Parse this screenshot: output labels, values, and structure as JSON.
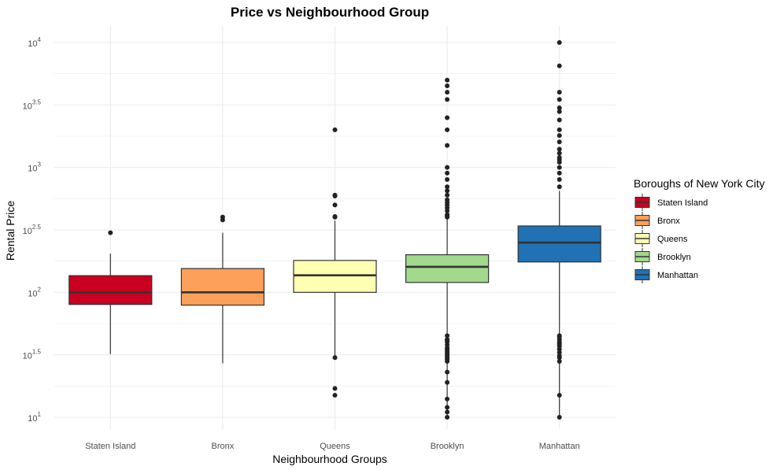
{
  "chart_data": {
    "type": "boxplot",
    "title": "Price vs Neighbourhood Group",
    "xlabel": "Neighbourhood Groups",
    "ylabel": "Rental Price",
    "y_scale": "log10",
    "ylim": [
      10,
      10000
    ],
    "y_ticks": [
      {
        "base": "10",
        "exp": "1"
      },
      {
        "base": "10",
        "exp": "1.5"
      },
      {
        "base": "10",
        "exp": "2"
      },
      {
        "base": "10",
        "exp": "2.5"
      },
      {
        "base": "10",
        "exp": "3"
      },
      {
        "base": "10",
        "exp": "3.5"
      },
      {
        "base": "10",
        "exp": "4"
      }
    ],
    "grid": true,
    "legend": {
      "title": "Boroughs of New York City",
      "placement": "right"
    },
    "categories": [
      "Staten Island",
      "Bronx",
      "Queens",
      "Brooklyn",
      "Manhattan"
    ],
    "series": [
      {
        "name": "Staten Island",
        "color": "#ca0020",
        "whisker_low": 32,
        "q1": 80,
        "median": 100,
        "q3": 136,
        "whisker_high": 204,
        "outliers": [
          300
        ]
      },
      {
        "name": "Bronx",
        "color": "#fda05a",
        "whisker_low": 27,
        "q1": 79,
        "median": 100,
        "q3": 155,
        "whisker_high": 300,
        "outliers": [
          380,
          400
        ]
      },
      {
        "name": "Queens",
        "color": "#ffffb2",
        "whisker_low": 30,
        "q1": 100,
        "median": 137,
        "q3": 180,
        "whisker_high": 375,
        "outliers": [
          15,
          17,
          30,
          400,
          405,
          500,
          590,
          600,
          2000
        ]
      },
      {
        "name": "Brooklyn",
        "color": "#a2d98c",
        "whisker_low": 10,
        "q1": 120,
        "median": 160,
        "q3": 200,
        "whisker_high": 400,
        "outliers": [
          10,
          11,
          12,
          14,
          19,
          23,
          28,
          29,
          30,
          31,
          32,
          33,
          34,
          35,
          36,
          38,
          40,
          41,
          42,
          45,
          400,
          410,
          420,
          450,
          475,
          500,
          525,
          550,
          600,
          650,
          700,
          800,
          900,
          1000,
          1500,
          2000,
          2500,
          3500,
          4000,
          4500,
          5000
        ]
      },
      {
        "name": "Manhattan",
        "color": "#2171b5",
        "whisker_low": 10,
        "q1": 175,
        "median": 250,
        "q3": 340,
        "whisker_high": 650,
        "outliers": [
          10,
          15,
          28,
          30,
          31,
          33,
          35,
          37,
          38,
          39,
          40,
          42,
          44,
          45,
          700,
          800,
          900,
          1000,
          1100,
          1150,
          1200,
          1300,
          1400,
          1600,
          1800,
          2000,
          2400,
          2800,
          3000,
          3500,
          4000,
          6500,
          10000
        ]
      }
    ]
  }
}
